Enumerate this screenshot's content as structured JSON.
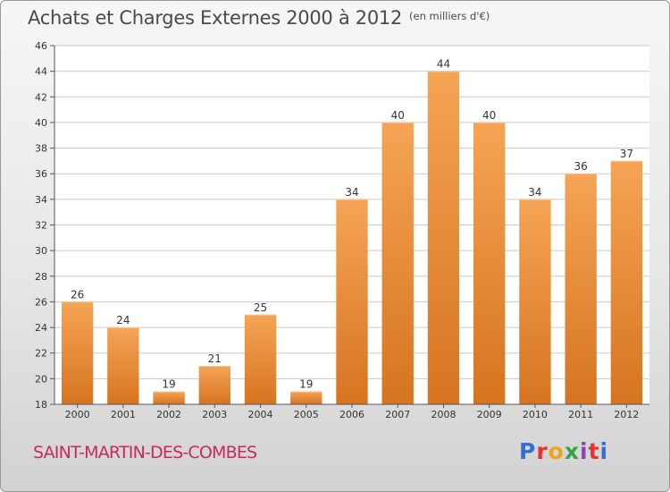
{
  "header": {
    "title": "Achats et Charges Externes 2000 à 2012",
    "unit": "(en milliers d'€)"
  },
  "footer": {
    "city": "SAINT-MARTIN-DES-COMBES",
    "brand": "Proxiti",
    "brand_colors": [
      "#2f6fd6",
      "#e8312f",
      "#f5a21b",
      "#2fa54a",
      "#8e3fb9",
      "#e8312f",
      "#2f6fd6"
    ]
  },
  "colors": {
    "bar_top": "#f5a455",
    "bar_bottom": "#d67420",
    "city": "#c8295a",
    "grid": "#c9c9c9",
    "text": "#333333"
  },
  "chart_data": {
    "type": "bar",
    "title": "Achats et Charges Externes 2000 à 2012",
    "categories": [
      "2000",
      "2001",
      "2002",
      "2003",
      "2004",
      "2005",
      "2006",
      "2007",
      "2008",
      "2009",
      "2010",
      "2011",
      "2012"
    ],
    "values": [
      26,
      24,
      19,
      21,
      25,
      19,
      34,
      40,
      44,
      40,
      34,
      36,
      37
    ],
    "ylim": [
      18,
      46
    ],
    "yticks": [
      18,
      20,
      22,
      24,
      26,
      28,
      30,
      32,
      34,
      36,
      38,
      40,
      42,
      44,
      46
    ],
    "grid": true,
    "xlabel": "",
    "ylabel": ""
  }
}
